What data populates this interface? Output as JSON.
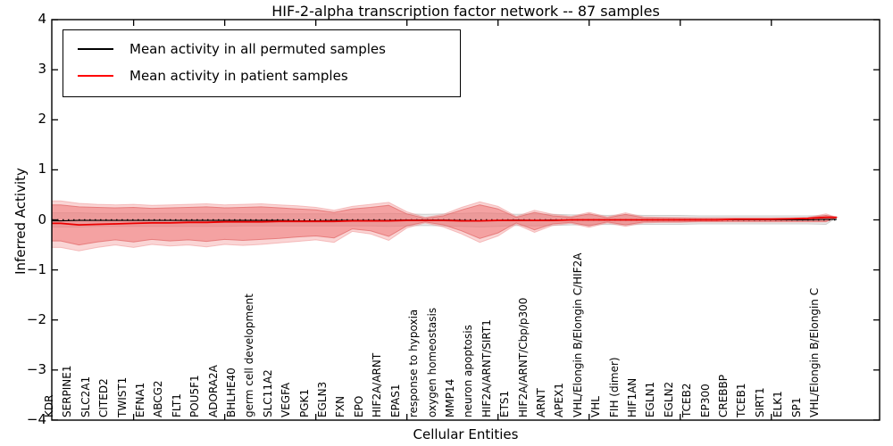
{
  "figure": {
    "title": "HIF-2-alpha transcription factor network -- 87 samples",
    "xlabel": "Cellular Entities",
    "ylabel": "Inferred Activity"
  },
  "legend": {
    "items": [
      {
        "label": "Mean activity in all permuted samples",
        "color": "#000000"
      },
      {
        "label": "Mean activity in patient samples",
        "color": "#ff0000"
      }
    ]
  },
  "chart_data": {
    "type": "line",
    "title": "HIF-2-alpha transcription factor network -- 87 samples",
    "xlabel": "Cellular Entities",
    "ylabel": "Inferred Activity",
    "ylim": [
      -4,
      4
    ],
    "ytick_labels": [
      "4",
      "3",
      "2",
      "1",
      "0",
      "−1",
      "−2",
      "−3",
      "−4"
    ],
    "ytick_values": [
      4,
      3,
      2,
      1,
      0,
      -1,
      -2,
      -3,
      -4
    ],
    "xtick_indices": [
      4,
      9,
      14,
      19,
      24,
      29,
      34,
      39
    ],
    "grid": false,
    "legend_position": "upper left",
    "zero_line": {
      "style": "dotted",
      "color": "#000000"
    },
    "categories": [
      "KDR",
      "SERPINE1",
      "SLC2A1",
      "CITED2",
      "TWIST1",
      "EFNA1",
      "ABCG2",
      "FLT1",
      "POU5F1",
      "ADORA2A",
      "BHLHE40",
      "germ cell development",
      "SLC11A2",
      "VEGFA",
      "PGK1",
      "EGLN3",
      "FXN",
      "EPO",
      "HIF2A/ARNT",
      "EPAS1",
      "response to hypoxia",
      "oxygen homeostasis",
      "MMP14",
      "neuron apoptosis",
      "HIF2A/ARNT/SIRT1",
      "ETS1",
      "HIF2A/ARNT/Cbp/p300",
      "ARNT",
      "APEX1",
      "VHL/Elongin B/Elongin C/HIF2A",
      "VHL",
      "FIH (dimer)",
      "HIF1AN",
      "EGLN1",
      "EGLN2",
      "TCEB2",
      "EP300",
      "CREBBP",
      "TCEB1",
      "SIRT1",
      "ELK1",
      "SP1",
      "VHL/Elongin B/Elongin C"
    ],
    "series": [
      {
        "name": "Mean activity in all permuted samples",
        "color": "#000000",
        "width": 1.1,
        "values": [
          -0.02,
          -0.01,
          -0.01,
          -0.01,
          -0.01,
          -0.01,
          -0.01,
          -0.01,
          -0.01,
          -0.01,
          -0.01,
          -0.01,
          -0.01,
          -0.02,
          -0.02,
          -0.01,
          -0.01,
          -0.01,
          -0.01,
          0,
          0,
          0,
          -0.01,
          -0.02,
          -0.01,
          0,
          -0.01,
          0,
          0,
          0,
          0,
          0,
          0,
          0,
          0,
          0,
          0,
          0,
          0,
          0,
          0,
          0,
          0.01
        ]
      },
      {
        "name": "Mean activity in patient samples",
        "color": "#ec0000",
        "width": 1.8,
        "values": [
          -0.07,
          -0.1,
          -0.09,
          -0.08,
          -0.07,
          -0.06,
          -0.06,
          -0.05,
          -0.05,
          -0.04,
          -0.04,
          -0.04,
          -0.03,
          -0.03,
          -0.03,
          -0.03,
          -0.02,
          -0.02,
          -0.02,
          -0.01,
          -0.01,
          -0.01,
          -0.02,
          -0.02,
          -0.01,
          -0.01,
          -0.01,
          -0.01,
          0,
          0,
          0,
          0,
          0,
          0,
          0,
          0,
          0,
          0.01,
          0.01,
          0.01,
          0.02,
          0.03,
          0.05
        ]
      }
    ],
    "bands": [
      {
        "name": "permuted-samples-range",
        "fill": "#d9d9d9",
        "opacity": 0.6,
        "edge": "#c8c8c8",
        "hi": [
          0.14,
          0.14,
          0.13,
          0.13,
          0.13,
          0.13,
          0.13,
          0.13,
          0.13,
          0.13,
          0.12,
          0.12,
          0.12,
          0.12,
          0.12,
          0.12,
          0.12,
          0.12,
          0.13,
          0.12,
          0.11,
          0.12,
          0.13,
          0.14,
          0.13,
          0.11,
          0.12,
          0.11,
          0.1,
          0.1,
          0.09,
          0.1,
          0.09,
          0.09,
          0.09,
          0.08,
          0.08,
          0.08,
          0.08,
          0.08,
          0.08,
          0.08,
          0.09
        ],
        "lo": [
          -0.14,
          -0.14,
          -0.13,
          -0.13,
          -0.13,
          -0.13,
          -0.13,
          -0.13,
          -0.13,
          -0.13,
          -0.12,
          -0.12,
          -0.12,
          -0.12,
          -0.12,
          -0.12,
          -0.12,
          -0.12,
          -0.13,
          -0.12,
          -0.11,
          -0.12,
          -0.13,
          -0.14,
          -0.13,
          -0.11,
          -0.12,
          -0.11,
          -0.1,
          -0.1,
          -0.09,
          -0.1,
          -0.09,
          -0.09,
          -0.09,
          -0.08,
          -0.08,
          -0.08,
          -0.08,
          -0.08,
          -0.08,
          -0.08,
          -0.09
        ]
      },
      {
        "name": "patient-samples-outer-band",
        "fill": "#f08080",
        "opacity": 0.33,
        "edge": "#ef9a9a",
        "hi": [
          0.38,
          0.33,
          0.31,
          0.3,
          0.31,
          0.29,
          0.3,
          0.31,
          0.32,
          0.3,
          0.31,
          0.32,
          0.3,
          0.28,
          0.25,
          0.19,
          0.27,
          0.31,
          0.35,
          0.16,
          0.05,
          0.11,
          0.25,
          0.36,
          0.27,
          0.07,
          0.19,
          0.11,
          0.07,
          0.15,
          0.06,
          0.14,
          0.06,
          0.05,
          0.05,
          0.04,
          0.04,
          0.04,
          0.04,
          0.04,
          0.04,
          0.05,
          0.12
        ],
        "lo": [
          -0.55,
          -0.62,
          -0.55,
          -0.5,
          -0.55,
          -0.49,
          -0.52,
          -0.5,
          -0.54,
          -0.49,
          -0.51,
          -0.49,
          -0.46,
          -0.43,
          -0.4,
          -0.45,
          -0.23,
          -0.28,
          -0.41,
          -0.16,
          -0.06,
          -0.14,
          -0.28,
          -0.45,
          -0.32,
          -0.09,
          -0.25,
          -0.11,
          -0.07,
          -0.15,
          -0.06,
          -0.13,
          -0.06,
          -0.05,
          -0.05,
          -0.04,
          -0.04,
          -0.04,
          -0.04,
          -0.04,
          -0.04,
          -0.04,
          -0.04
        ]
      },
      {
        "name": "patient-samples-inner-band",
        "fill": "#ee7070",
        "opacity": 0.5,
        "edge": "#e26a6a",
        "hi": [
          0.3,
          0.26,
          0.25,
          0.24,
          0.25,
          0.23,
          0.24,
          0.25,
          0.26,
          0.24,
          0.25,
          0.26,
          0.24,
          0.22,
          0.2,
          0.15,
          0.22,
          0.25,
          0.29,
          0.12,
          0.03,
          0.08,
          0.2,
          0.3,
          0.22,
          0.05,
          0.15,
          0.08,
          0.05,
          0.12,
          0.04,
          0.11,
          0.04,
          0.04,
          0.03,
          0.03,
          0.03,
          0.03,
          0.03,
          0.03,
          0.03,
          0.04,
          0.09
        ],
        "lo": [
          -0.42,
          -0.5,
          -0.44,
          -0.4,
          -0.44,
          -0.39,
          -0.42,
          -0.4,
          -0.43,
          -0.39,
          -0.41,
          -0.39,
          -0.37,
          -0.34,
          -0.32,
          -0.36,
          -0.18,
          -0.22,
          -0.33,
          -0.12,
          -0.04,
          -0.1,
          -0.22,
          -0.37,
          -0.26,
          -0.06,
          -0.2,
          -0.08,
          -0.05,
          -0.12,
          -0.04,
          -0.1,
          -0.04,
          -0.04,
          -0.04,
          -0.03,
          -0.03,
          -0.03,
          -0.03,
          -0.03,
          -0.03,
          -0.03,
          -0.03
        ]
      }
    ]
  }
}
